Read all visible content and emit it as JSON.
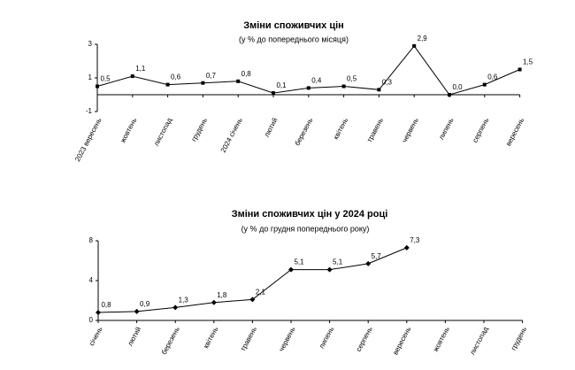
{
  "chart_data": [
    {
      "type": "line",
      "title": "Зміни споживчих цін",
      "subtitle": "(у %  до попереднього місяця)",
      "categories": [
        "2023 вересень",
        "жовтень",
        "листопад",
        "грудень",
        "2024 січень",
        "лютий",
        "березень",
        "квітень",
        "травень",
        "червень",
        "липень",
        "серпень",
        "вересень"
      ],
      "values": [
        0.5,
        1.1,
        0.6,
        0.7,
        0.8,
        0.1,
        0.4,
        0.5,
        0.3,
        2.9,
        0.0,
        0.6,
        1.5
      ],
      "value_labels": [
        "0,5",
        "1,1",
        "0,6",
        "0,7",
        "0,8",
        "0,1",
        "0,4",
        "0,5",
        "0,3",
        "2,9",
        "0,0",
        "0,6",
        "1,5"
      ],
      "color": "#000000",
      "marker": "square",
      "ylim": [
        -1,
        3
      ],
      "yticks": [
        -1,
        1,
        3
      ]
    },
    {
      "type": "line",
      "title": "Зміни споживчих цін у 2024 році",
      "subtitle": "(у %  до грудня попереднього року)",
      "categories": [
        "січень",
        "лютий",
        "березень",
        "квітень",
        "травень",
        "червень",
        "липень",
        "серпень",
        "вересень",
        "жовтень",
        "листопад",
        "грудень"
      ],
      "values": [
        0.8,
        0.9,
        1.3,
        1.8,
        2.1,
        5.1,
        5.1,
        5.7,
        7.3,
        null,
        null,
        null
      ],
      "value_labels": [
        "0,8",
        "0,9",
        "1,3",
        "1,8",
        "2,1",
        "5,1",
        "5,1",
        "5,7",
        "7,3",
        null,
        null,
        null
      ],
      "color": "#000000",
      "marker": "diamond",
      "ylim": [
        0,
        8
      ],
      "yticks": [
        0,
        4,
        8
      ]
    }
  ]
}
